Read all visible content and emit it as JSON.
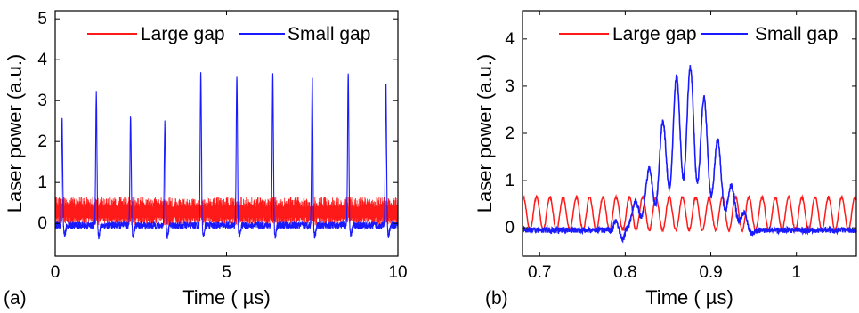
{
  "colors": {
    "large": "#ff1a1a",
    "small": "#1a1aff",
    "axis": "#000000"
  },
  "chart_data": [
    {
      "type": "line",
      "panel_label": "(a)",
      "xlabel": "Time ( µs)",
      "ylabel": "Laser power (a.u.)",
      "xlim": [
        0,
        10
      ],
      "ylim": [
        -0.8,
        5.2
      ],
      "xticks": [
        "0",
        "5",
        "10"
      ],
      "xtick_values": [
        0,
        5,
        10
      ],
      "yticks": [
        "0",
        "1",
        "2",
        "3",
        "4",
        "5"
      ],
      "ytick_values": [
        0,
        1,
        2,
        3,
        4,
        5
      ],
      "legend_position": "top-right",
      "series": [
        {
          "name": "Large gap",
          "color": "#ff1a1a",
          "description_values": {
            "band_min": -0.05,
            "band_max": 0.65
          }
        },
        {
          "name": "Small gap",
          "color": "#1a1aff",
          "peak_x": [
            0.2,
            1.2,
            2.2,
            3.2,
            4.25,
            5.3,
            6.35,
            7.5,
            8.55,
            9.65
          ],
          "peak_y": [
            2.6,
            3.2,
            2.7,
            2.5,
            3.75,
            3.7,
            3.65,
            3.65,
            3.7,
            3.5
          ]
        }
      ]
    },
    {
      "type": "line",
      "panel_label": "(b)",
      "xlabel": "Time ( µs)",
      "ylabel": "Laser power (a.u.)",
      "xlim": [
        0.68,
        1.07
      ],
      "ylim": [
        -0.6,
        4.6
      ],
      "xticks": [
        "0.7",
        "0.8",
        "0.9",
        "1"
      ],
      "xtick_values": [
        0.7,
        0.8,
        0.9,
        1.0
      ],
      "yticks": [
        "0",
        "1",
        "2",
        "3",
        "4"
      ],
      "ytick_values": [
        0,
        1,
        2,
        3,
        4
      ],
      "legend_position": "top-right",
      "series": [
        {
          "name": "Large gap",
          "color": "#ff1a1a",
          "period": 0.0155,
          "min": -0.05,
          "max": 0.65
        },
        {
          "name": "Small gap",
          "color": "#1a1aff",
          "peak_x": [
            0.812,
            0.828,
            0.844,
            0.86,
            0.876,
            0.892,
            0.908,
            0.924,
            0.94
          ],
          "peak_y": [
            0.6,
            1.3,
            2.3,
            3.25,
            3.45,
            2.8,
            1.9,
            0.95,
            0.45
          ]
        }
      ]
    }
  ]
}
